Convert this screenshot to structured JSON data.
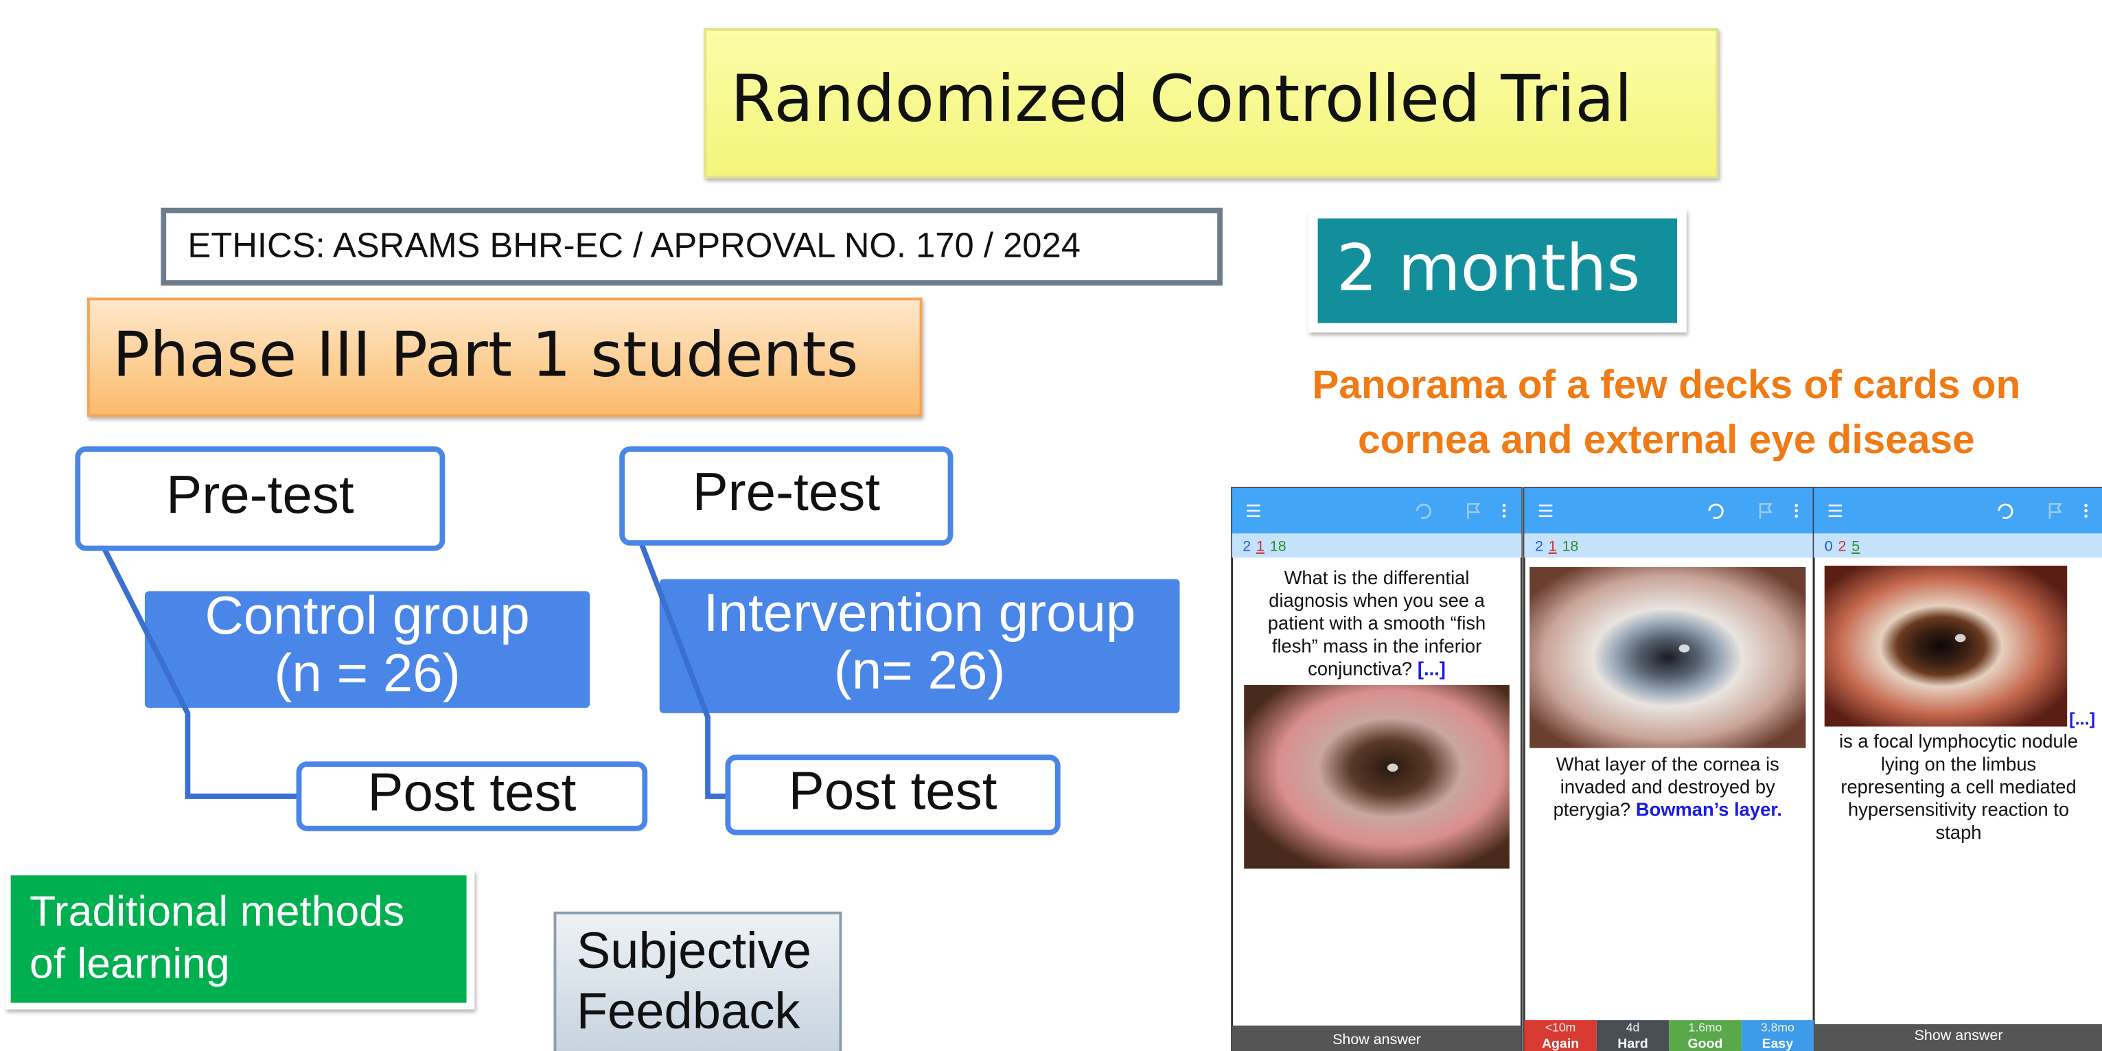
{
  "title": "Randomized Controlled Trial",
  "ethics": "ETHICS: ASRAMS BHR-EC / APPROVAL NO. 170 / 2024",
  "duration": "2 months",
  "population": "Phase III Part 1 students",
  "caption": [
    "Panorama of a few decks of cards on",
    "cornea and external eye disease"
  ],
  "arms": [
    {
      "pre": "Pre-test",
      "group": [
        "Control group",
        "(n = 26)"
      ],
      "post": "Post test"
    },
    {
      "pre": "Pre-test",
      "group": [
        "Intervention group",
        "(n= 26)"
      ],
      "post": "Post test"
    }
  ],
  "traditional": [
    "Traditional methods",
    "of learning"
  ],
  "feedback": [
    "Subjective",
    "Feedback"
  ],
  "cards": [
    {
      "counts": [
        2,
        1,
        18
      ],
      "text": [
        "What is the differential",
        "diagnosis when you see a",
        "patient with a smooth “fish",
        "flesh” mass in the inferior",
        "conjunctiva?"
      ],
      "cloze": "[...]",
      "footer": "Show answer"
    },
    {
      "counts": [
        2,
        1,
        18
      ],
      "text": [
        "What layer of the cornea is",
        "invaded and destroyed by",
        "pterygia?"
      ],
      "answer": "Bowman’s layer.",
      "buttons": [
        {
          "interval": "<10m",
          "label": "Again"
        },
        {
          "interval": "4d",
          "label": "Hard"
        },
        {
          "interval": "1.6mo",
          "label": "Good"
        },
        {
          "interval": "3.8mo",
          "label": "Easy"
        }
      ]
    },
    {
      "counts": [
        0,
        2,
        5
      ],
      "cloze": "[...]",
      "text": [
        "is a focal lymphocytic nodule",
        "lying on the limbus",
        "representing a cell mediated",
        "hypersensitivity reaction to",
        "staph"
      ],
      "footer": "Show answer"
    }
  ]
}
